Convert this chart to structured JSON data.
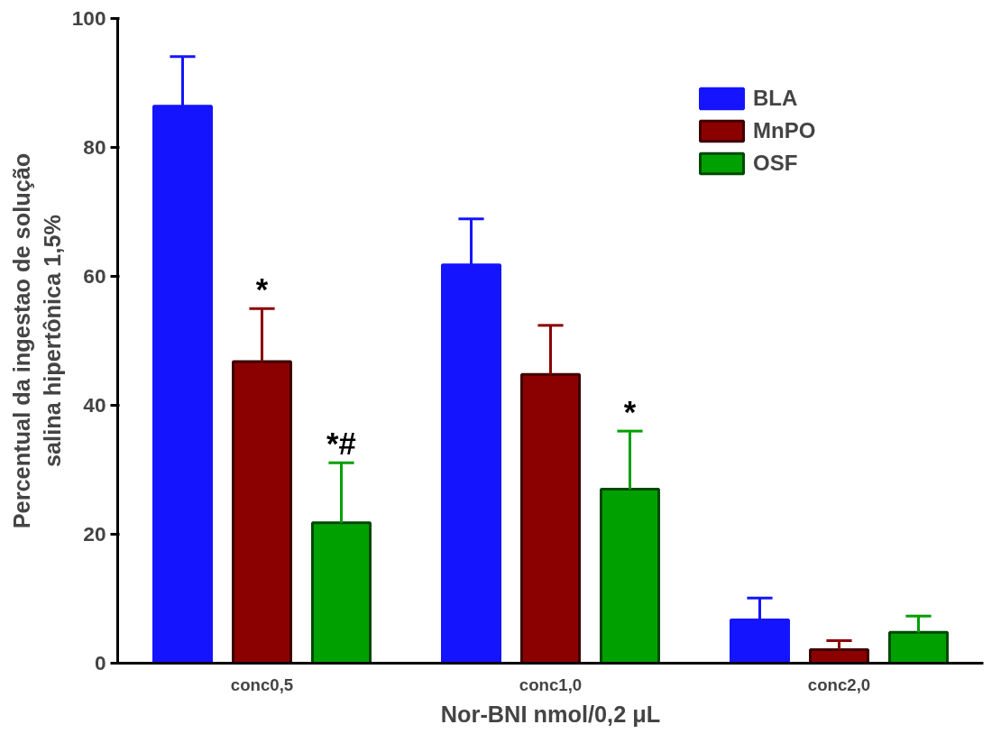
{
  "chart_data": {
    "type": "bar",
    "xlabel": "Nor-BNI nmol/0,2 μL",
    "ylabel": "Percentual da ingestao de solução\nsalina hipertônica 1,5%",
    "categories": [
      "conc0,5",
      "conc1,0",
      "conc2,0"
    ],
    "series": [
      {
        "name": "BLA",
        "color": "#1414ff",
        "values": [
          86.4,
          61.8,
          6.7
        ],
        "errors": [
          [
            86.4,
            94.1
          ],
          [
            61.8,
            68.9
          ],
          [
            6.7,
            10.1
          ]
        ]
      },
      {
        "name": "MnPO",
        "color": "#8b0000",
        "values": [
          46.8,
          44.8,
          2.1
        ],
        "errors": [
          [
            46.8,
            55.0
          ],
          [
            44.8,
            52.4
          ],
          [
            2.1,
            3.5
          ]
        ]
      },
      {
        "name": "OSF",
        "color": "#00a000",
        "values": [
          21.8,
          27.0,
          4.8
        ],
        "errors": [
          [
            21.8,
            31.1
          ],
          [
            27.0,
            36.0
          ],
          [
            4.8,
            7.3
          ]
        ]
      }
    ],
    "ylim": [
      0,
      100
    ],
    "yticks": [
      0,
      20,
      40,
      60,
      80,
      100
    ],
    "annotations": [
      {
        "text": "*",
        "y": 55.0
      },
      {
        "text": "*#",
        "y": 31.1
      },
      {
        "text": "*",
        "y": 36.0
      }
    ],
    "grid": false,
    "legend": "top right"
  }
}
